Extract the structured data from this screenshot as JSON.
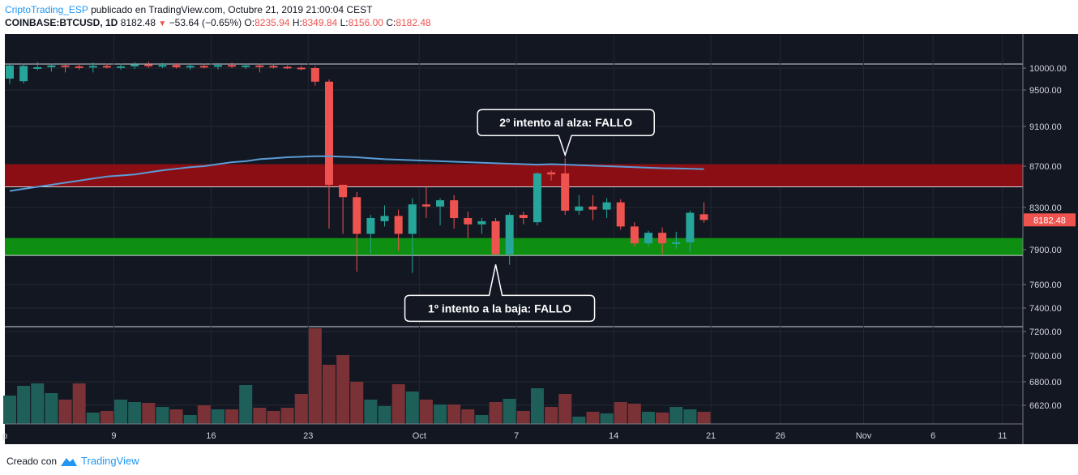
{
  "header": {
    "author": "CriptoTrading_ESP",
    "published": "publicado en TradingView.com, Octubre 21, 2019 21:00:04 CEST",
    "symbol": "COINBASE:BTCUSD, 1D",
    "last": "8182.48",
    "change": "−53.64 (−0.65%)",
    "o_label": "O:",
    "o_value": "8235.94",
    "h_label": "H:",
    "h_value": "8349.84",
    "l_label": "L:",
    "l_value": "8156.00",
    "c_label": "C:",
    "c_value": "8182.48"
  },
  "footer": {
    "created_with": "Creado con",
    "brand": "TradingView"
  },
  "colors": {
    "background": "#131722",
    "up": "#26a69a",
    "down": "#ef5350",
    "ma": "#5b9bd5",
    "resistance_zone": "#8b0e14",
    "support_zone": "#0f8f12",
    "vol_up": "#1e5f5a",
    "vol_down": "#7a3236"
  },
  "chart_data": {
    "type": "candlestick",
    "symbol": "COINBASE:BTCUSD",
    "timeframe": "1D",
    "y_ticks": [
      "10000.00",
      "9500.00",
      "9100.00",
      "8700.00",
      "8300.00",
      "7900.00",
      "7600.00",
      "7400.00",
      "7200.00",
      "7000.00",
      "6800.00",
      "6620.00"
    ],
    "x_ticks": [
      "p",
      "9",
      "16",
      "23",
      "Oct",
      "7",
      "14",
      "21",
      "26",
      "Nov",
      "6",
      "11"
    ],
    "last_price_label": "8182.48",
    "candles": [
      {
        "o": 9760,
        "h": 10090,
        "l": 9640,
        "c": 10060
      },
      {
        "o": 9700,
        "h": 10100,
        "l": 9650,
        "c": 10050
      },
      {
        "o": 10000,
        "h": 10140,
        "l": 9950,
        "c": 10020
      },
      {
        "o": 10020,
        "h": 10100,
        "l": 9920,
        "c": 10060
      },
      {
        "o": 10060,
        "h": 10110,
        "l": 9900,
        "c": 10040
      },
      {
        "o": 10040,
        "h": 10110,
        "l": 9960,
        "c": 10020
      },
      {
        "o": 10020,
        "h": 10130,
        "l": 9900,
        "c": 10050
      },
      {
        "o": 10050,
        "h": 10100,
        "l": 9990,
        "c": 10020
      },
      {
        "o": 10020,
        "h": 10100,
        "l": 9960,
        "c": 10040
      },
      {
        "o": 10040,
        "h": 10140,
        "l": 9980,
        "c": 10080
      },
      {
        "o": 10080,
        "h": 10150,
        "l": 10000,
        "c": 10060
      },
      {
        "o": 10060,
        "h": 10120,
        "l": 10000,
        "c": 10070
      },
      {
        "o": 10070,
        "h": 10110,
        "l": 9990,
        "c": 10020
      },
      {
        "o": 10020,
        "h": 10090,
        "l": 9960,
        "c": 10050
      },
      {
        "o": 10050,
        "h": 10100,
        "l": 9990,
        "c": 10030
      },
      {
        "o": 10030,
        "h": 10120,
        "l": 9970,
        "c": 10070
      },
      {
        "o": 10070,
        "h": 10130,
        "l": 10000,
        "c": 10040
      },
      {
        "o": 10040,
        "h": 10100,
        "l": 9980,
        "c": 10060
      },
      {
        "o": 10060,
        "h": 10100,
        "l": 9900,
        "c": 10050
      },
      {
        "o": 10050,
        "h": 10100,
        "l": 9990,
        "c": 10030
      },
      {
        "o": 10030,
        "h": 10060,
        "l": 9980,
        "c": 10010
      },
      {
        "o": 10010,
        "h": 10050,
        "l": 9950,
        "c": 10000
      },
      {
        "o": 10000,
        "h": 10050,
        "l": 9600,
        "c": 9690
      },
      {
        "o": 9690,
        "h": 9740,
        "l": 8100,
        "c": 8520
      },
      {
        "o": 8520,
        "h": 8500,
        "l": 8050,
        "c": 8400
      },
      {
        "o": 8400,
        "h": 8450,
        "l": 7710,
        "c": 8050
      },
      {
        "o": 8050,
        "h": 8230,
        "l": 7870,
        "c": 8200
      },
      {
        "o": 8170,
        "h": 8320,
        "l": 8120,
        "c": 8220
      },
      {
        "o": 8220,
        "h": 8280,
        "l": 7890,
        "c": 8050
      },
      {
        "o": 8050,
        "h": 8390,
        "l": 7700,
        "c": 8330
      },
      {
        "o": 8330,
        "h": 8500,
        "l": 8200,
        "c": 8310
      },
      {
        "o": 8310,
        "h": 8390,
        "l": 8130,
        "c": 8370
      },
      {
        "o": 8370,
        "h": 8420,
        "l": 8100,
        "c": 8200
      },
      {
        "o": 8200,
        "h": 8260,
        "l": 8010,
        "c": 8140
      },
      {
        "o": 8140,
        "h": 8200,
        "l": 8050,
        "c": 8170
      },
      {
        "o": 8170,
        "h": 8200,
        "l": 7860,
        "c": 7860
      },
      {
        "o": 7860,
        "h": 8250,
        "l": 7770,
        "c": 8230
      },
      {
        "o": 8230,
        "h": 8260,
        "l": 8140,
        "c": 8200
      },
      {
        "o": 8160,
        "h": 8640,
        "l": 8130,
        "c": 8630
      },
      {
        "o": 8640,
        "h": 8660,
        "l": 8560,
        "c": 8620
      },
      {
        "o": 8630,
        "h": 8780,
        "l": 8230,
        "c": 8270
      },
      {
        "o": 8270,
        "h": 8420,
        "l": 8230,
        "c": 8310
      },
      {
        "o": 8310,
        "h": 8420,
        "l": 8180,
        "c": 8280
      },
      {
        "o": 8280,
        "h": 8390,
        "l": 8200,
        "c": 8350
      },
      {
        "o": 8350,
        "h": 8380,
        "l": 8090,
        "c": 8120
      },
      {
        "o": 8120,
        "h": 8160,
        "l": 7930,
        "c": 7960
      },
      {
        "o": 7960,
        "h": 8080,
        "l": 7930,
        "c": 8060
      },
      {
        "o": 8060,
        "h": 8110,
        "l": 7860,
        "c": 7960
      },
      {
        "o": 7960,
        "h": 8070,
        "l": 7910,
        "c": 7970
      },
      {
        "o": 7970,
        "h": 8270,
        "l": 7880,
        "c": 8250
      },
      {
        "o": 8236,
        "h": 8350,
        "l": 8156,
        "c": 8182
      }
    ],
    "ma": [
      8460,
      8480,
      8500,
      8520,
      8540,
      8560,
      8580,
      8600,
      8610,
      8620,
      8640,
      8660,
      8675,
      8690,
      8700,
      8720,
      8740,
      8750,
      8770,
      8780,
      8790,
      8795,
      8800,
      8800,
      8795,
      8790,
      8780,
      8770,
      8765,
      8760,
      8755,
      8750,
      8745,
      8740,
      8735,
      8730,
      8725,
      8720,
      8715,
      8720,
      8715,
      8710,
      8705,
      8700,
      8695,
      8690,
      8685,
      8680,
      8678,
      8675,
      8672
    ],
    "volume": [
      35,
      47,
      50,
      38,
      30,
      50,
      14,
      16,
      30,
      27,
      26,
      21,
      18,
      11,
      23,
      18,
      18,
      48,
      20,
      16,
      20,
      37,
      118,
      73,
      85,
      52,
      30,
      22,
      49,
      40,
      30,
      24,
      24,
      18,
      11,
      27,
      31,
      16,
      44,
      21,
      37,
      9,
      15,
      13,
      27,
      25,
      15,
      14,
      21,
      18,
      15
    ],
    "zones": [
      {
        "name": "resistance",
        "from": 8500,
        "to": 8720
      },
      {
        "name": "support",
        "from": 7850,
        "to": 8010
      }
    ],
    "annotations": [
      {
        "text": "2º intento al alza: FALLO",
        "candle_index": 40,
        "price": 8780,
        "position": "above"
      },
      {
        "text": "1º intento a la baja: FALLO",
        "candle_index": 35,
        "price": 7800,
        "position": "below"
      }
    ]
  }
}
